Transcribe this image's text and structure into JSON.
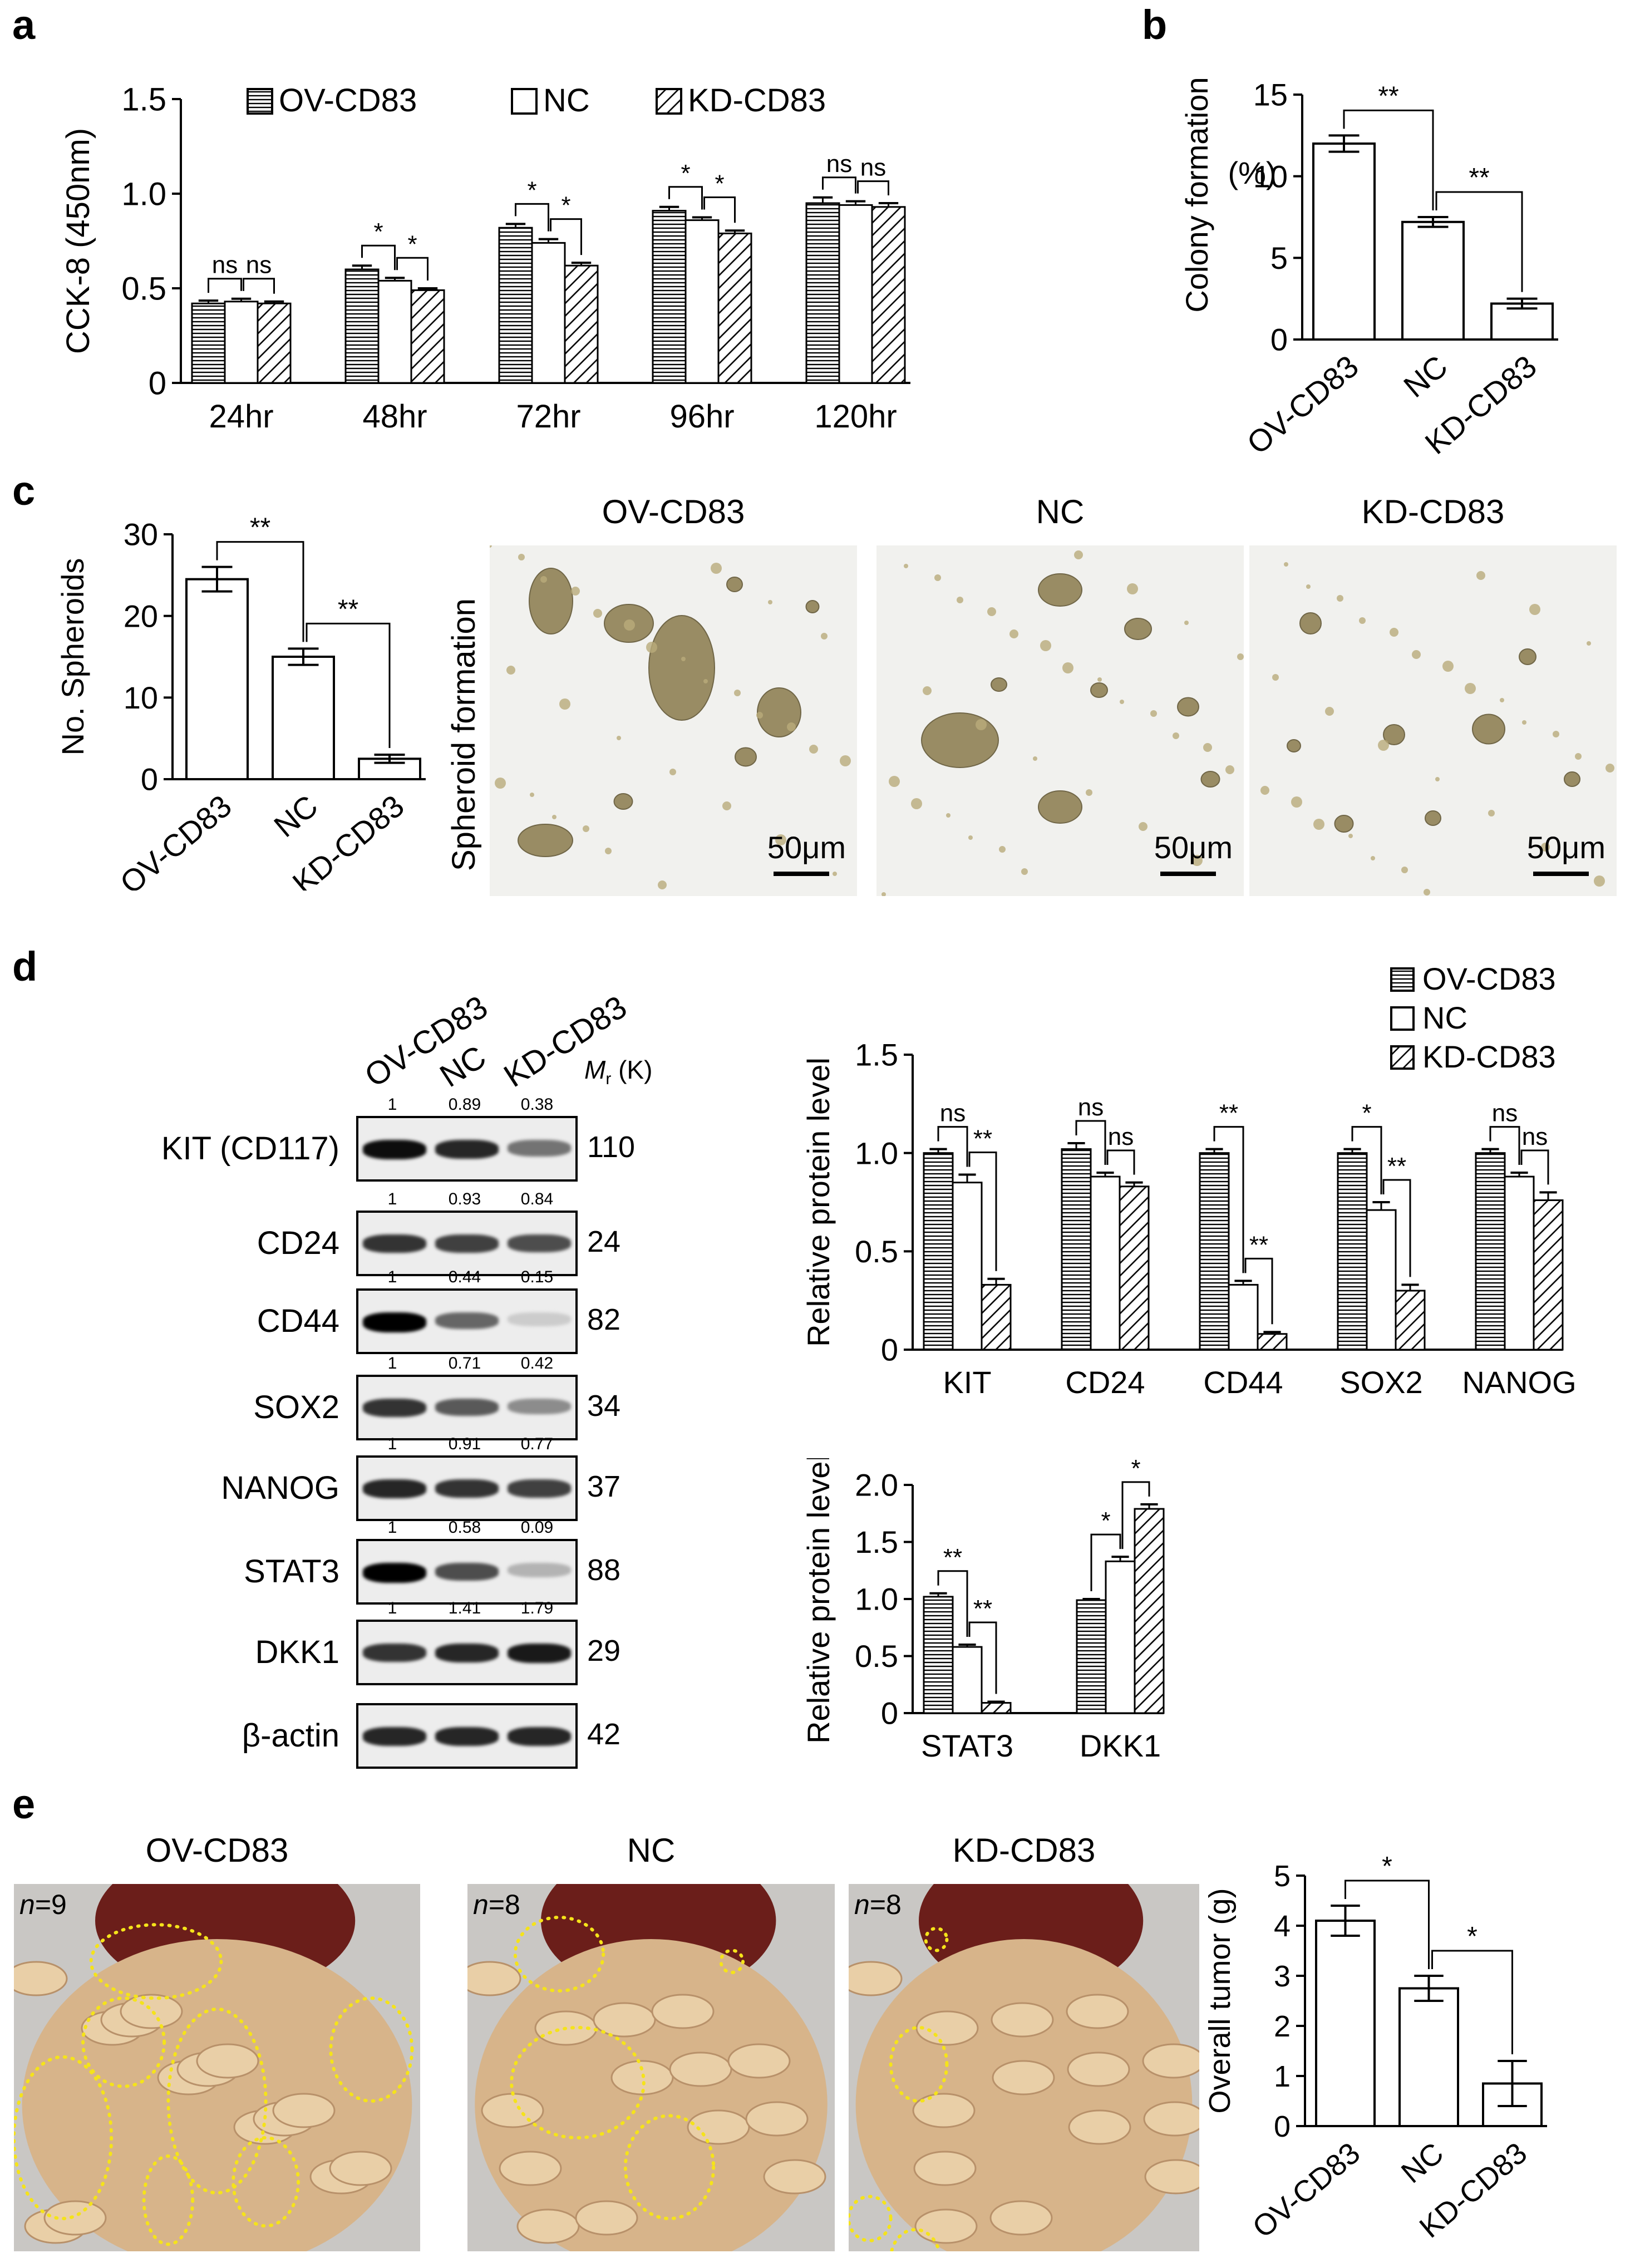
{
  "panels": {
    "a": "a",
    "b": "b",
    "c": "c",
    "d": "d",
    "e": "e"
  },
  "groups": [
    "OV-CD83",
    "NC",
    "KD-CD83"
  ],
  "colors": {
    "ov_fill": "#ffffff",
    "hatch": "#000000",
    "bar_stroke": "#000000",
    "outline_yellow": "#f5e31a",
    "tissue": "#d9b78a",
    "bg_light": "#f2f2f2"
  },
  "chart_data": [
    {
      "id": "a",
      "type": "bar",
      "ylabel": "CCK-8 (450nm)",
      "xlabel": "",
      "categories": [
        "24hr",
        "48hr",
        "72hr",
        "96hr",
        "120hr"
      ],
      "ylim": [
        0,
        1.5
      ],
      "yticks": [
        "0",
        "0.5",
        "1.0",
        "1.5"
      ],
      "legend_position": "top",
      "series": [
        {
          "name": "OV-CD83",
          "pattern": "horizontal",
          "values": [
            0.42,
            0.6,
            0.82,
            0.91,
            0.95
          ],
          "errors": [
            0.015,
            0.02,
            0.02,
            0.02,
            0.03
          ]
        },
        {
          "name": "NC",
          "pattern": "none",
          "values": [
            0.43,
            0.54,
            0.74,
            0.86,
            0.94
          ],
          "errors": [
            0.015,
            0.015,
            0.02,
            0.015,
            0.02
          ]
        },
        {
          "name": "KD-CD83",
          "pattern": "diagonal",
          "values": [
            0.42,
            0.49,
            0.62,
            0.79,
            0.93
          ],
          "errors": [
            0.01,
            0.01,
            0.015,
            0.015,
            0.02
          ]
        }
      ],
      "significance": [
        [
          "ns",
          "ns"
        ],
        [
          "*",
          "*"
        ],
        [
          "*",
          "*"
        ],
        [
          "*",
          "*"
        ],
        [
          "ns",
          "ns"
        ]
      ]
    },
    {
      "id": "b",
      "type": "bar",
      "ylabel": "Colony formation",
      "ylabel2": "(%)",
      "categories": [
        "OV-CD83",
        "NC",
        "KD-CD83"
      ],
      "values": [
        12.0,
        7.2,
        2.2
      ],
      "errors": [
        0.5,
        0.3,
        0.3
      ],
      "ylim": [
        0,
        15
      ],
      "yticks": [
        "0",
        "5",
        "10",
        "15"
      ],
      "significance": [
        "**",
        "**"
      ]
    },
    {
      "id": "c",
      "type": "bar",
      "ylabel": "No. Spheroids",
      "categories": [
        "OV-CD83",
        "NC",
        "KD-CD83"
      ],
      "values": [
        24.5,
        15.0,
        2.5
      ],
      "errors": [
        1.5,
        1.0,
        0.5
      ],
      "ylim": [
        0,
        30
      ],
      "yticks": [
        "0",
        "10",
        "20",
        "30"
      ],
      "significance": [
        "**",
        "**"
      ]
    },
    {
      "id": "d1",
      "type": "bar",
      "ylabel": "Relative protein level",
      "categories": [
        "KIT",
        "CD24",
        "CD44",
        "SOX2",
        "NANOG"
      ],
      "ylim": [
        0,
        1.5
      ],
      "yticks": [
        "0",
        "0.5",
        "1.0",
        "1.5"
      ],
      "legend_position": "top-right",
      "series": [
        {
          "name": "OV-CD83",
          "pattern": "horizontal",
          "values": [
            1.0,
            1.02,
            1.0,
            1.0,
            1.0
          ],
          "errors": [
            0.02,
            0.03,
            0.02,
            0.02,
            0.02
          ]
        },
        {
          "name": "NC",
          "pattern": "none",
          "values": [
            0.85,
            0.88,
            0.33,
            0.71,
            0.88
          ],
          "errors": [
            0.04,
            0.02,
            0.02,
            0.04,
            0.02
          ]
        },
        {
          "name": "KD-CD83",
          "pattern": "diagonal",
          "values": [
            0.33,
            0.83,
            0.08,
            0.3,
            0.76
          ],
          "errors": [
            0.03,
            0.02,
            0.01,
            0.03,
            0.04
          ]
        }
      ],
      "significance": [
        [
          "ns",
          "**"
        ],
        [
          "ns",
          "ns"
        ],
        [
          "**",
          "**"
        ],
        [
          "*",
          "**"
        ],
        [
          "ns",
          "ns"
        ]
      ]
    },
    {
      "id": "d2",
      "type": "bar",
      "ylabel": "Relative protein level",
      "categories": [
        "STAT3",
        "DKK1"
      ],
      "ylim": [
        0,
        2.0
      ],
      "yticks": [
        "0",
        "0.5",
        "1.0",
        "1.5",
        "2.0"
      ],
      "series": [
        {
          "name": "OV-CD83",
          "pattern": "horizontal",
          "values": [
            1.02,
            0.99
          ],
          "errors": [
            0.03,
            0.01
          ]
        },
        {
          "name": "NC",
          "pattern": "none",
          "values": [
            0.58,
            1.33
          ],
          "errors": [
            0.02,
            0.04
          ]
        },
        {
          "name": "KD-CD83",
          "pattern": "diagonal",
          "values": [
            0.09,
            1.79
          ],
          "errors": [
            0.01,
            0.04
          ]
        }
      ],
      "significance": [
        [
          "**",
          "**"
        ],
        [
          "*",
          "*"
        ]
      ]
    },
    {
      "id": "e",
      "type": "bar",
      "ylabel": "Overall tumor (g)",
      "categories": [
        "OV-CD83",
        "NC",
        "KD-CD83"
      ],
      "values": [
        4.1,
        2.75,
        0.85
      ],
      "errors": [
        0.3,
        0.25,
        0.45
      ],
      "ylim": [
        0,
        5
      ],
      "yticks": [
        "0",
        "1",
        "2",
        "3",
        "4",
        "5"
      ],
      "significance": [
        "*",
        "*"
      ]
    }
  ],
  "spheroid": {
    "ylabel": "Spheroid formation",
    "titles": [
      "OV-CD83",
      "NC",
      "KD-CD83"
    ],
    "scalebar": "50μm"
  },
  "western": {
    "lanes": [
      "OV-CD83",
      "NC",
      "KD-CD83"
    ],
    "mr_label": "M",
    "mr_sub": "r",
    "mr_suffix": " (K)",
    "rows": [
      {
        "name": "KIT (CD117)",
        "mw": "110",
        "quant": [
          "1",
          "0.89",
          "0.38"
        ],
        "intensity": [
          0.95,
          0.85,
          0.55
        ]
      },
      {
        "name": "CD24",
        "mw": "24",
        "quant": [
          "1",
          "0.93",
          "0.84"
        ],
        "intensity": [
          0.8,
          0.75,
          0.7
        ]
      },
      {
        "name": "CD44",
        "mw": "82",
        "quant": [
          "1",
          "0.44",
          "0.15"
        ],
        "intensity": [
          1.0,
          0.6,
          0.2
        ]
      },
      {
        "name": "SOX2",
        "mw": "34",
        "quant": [
          "1",
          "0.71",
          "0.42"
        ],
        "intensity": [
          0.8,
          0.65,
          0.45
        ]
      },
      {
        "name": "NANOG",
        "mw": "37",
        "quant": [
          "1",
          "0.91",
          "0.77"
        ],
        "intensity": [
          0.85,
          0.8,
          0.75
        ]
      },
      {
        "name": "STAT3",
        "mw": "88",
        "quant": [
          "1",
          "0.58",
          "0.09"
        ],
        "intensity": [
          1.0,
          0.7,
          0.3
        ]
      },
      {
        "name": "DKK1",
        "mw": "29",
        "quant": [
          "1",
          "1.41",
          "1.79"
        ],
        "intensity": [
          0.8,
          0.85,
          0.9
        ]
      },
      {
        "name": "β-actin",
        "mw": "42",
        "quant": null,
        "intensity": [
          0.85,
          0.85,
          0.85
        ]
      }
    ]
  },
  "mice": {
    "titles": [
      "OV-CD83",
      "NC",
      "KD-CD83"
    ],
    "n_labels": [
      {
        "n": "n",
        "value": "=9"
      },
      {
        "n": "n",
        "value": "=8"
      },
      {
        "n": "n",
        "value": "=8"
      }
    ]
  }
}
